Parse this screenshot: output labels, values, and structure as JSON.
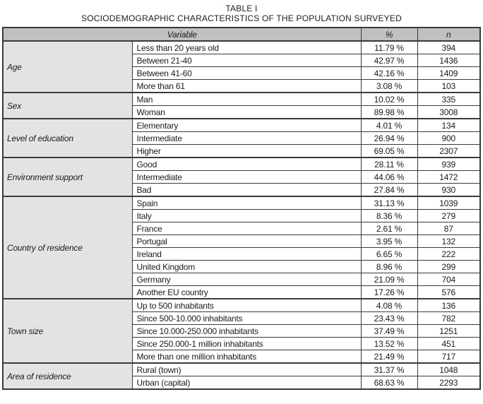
{
  "title": {
    "line1": "TABLE I",
    "line2": "SOCIODEMOGRAPHIC CHARACTERISTICS OF THE POPULATION SURVEYED"
  },
  "table": {
    "headers": {
      "variable": "Variable",
      "percent": "%",
      "n": "n"
    },
    "groups": [
      {
        "variable": "Age",
        "rows": [
          {
            "category": "Less than 20 years old",
            "percent": "11.79 %",
            "n": "394"
          },
          {
            "category": "Between 21-40",
            "percent": "42.97 %",
            "n": "1436"
          },
          {
            "category": "Between 41-60",
            "percent": "42.16 %",
            "n": "1409"
          },
          {
            "category": "More than 61",
            "percent": "3.08 %",
            "n": "103"
          }
        ]
      },
      {
        "variable": "Sex",
        "rows": [
          {
            "category": "Man",
            "percent": "10.02 %",
            "n": "335"
          },
          {
            "category": "Woman",
            "percent": "89.98 %",
            "n": "3008"
          }
        ]
      },
      {
        "variable": "Level of education",
        "rows": [
          {
            "category": "Elementary",
            "percent": "4.01 %",
            "n": "134"
          },
          {
            "category": "Intermediate",
            "percent": "26.94 %",
            "n": "900"
          },
          {
            "category": "Higher",
            "percent": "69.05 %",
            "n": "2307"
          }
        ]
      },
      {
        "variable": "Environment support",
        "rows": [
          {
            "category": "Good",
            "percent": "28.11 %",
            "n": "939"
          },
          {
            "category": "Intermediate",
            "percent": "44.06 %",
            "n": "1472"
          },
          {
            "category": "Bad",
            "percent": "27.84 %",
            "n": "930"
          }
        ]
      },
      {
        "variable": "Country of residence",
        "rows": [
          {
            "category": "Spain",
            "percent": "31.13 %",
            "n": "1039"
          },
          {
            "category": "Italy",
            "percent": "8.36 %",
            "n": "279"
          },
          {
            "category": "France",
            "percent": "2.61 %",
            "n": "87"
          },
          {
            "category": "Portugal",
            "percent": "3.95 %",
            "n": "132"
          },
          {
            "category": "Ireland",
            "percent": "6.65 %",
            "n": "222"
          },
          {
            "category": "United Kingdom",
            "percent": "8.96 %",
            "n": "299"
          },
          {
            "category": "Germany",
            "percent": "21.09 %",
            "n": "704"
          },
          {
            "category": "Another EU country",
            "percent": "17.26 %",
            "n": "576"
          }
        ]
      },
      {
        "variable": "Town size",
        "rows": [
          {
            "category": "Up to 500 inhabitants",
            "percent": "4.08 %",
            "n": "136"
          },
          {
            "category": "Since 500-10.000 inhabitants",
            "percent": "23.43 %",
            "n": "782"
          },
          {
            "category": "Since 10.000-250.000 inhabitants",
            "percent": "37.49 %",
            "n": "1251"
          },
          {
            "category": "Since 250.000-1 million inhabitants",
            "percent": "13.52 %",
            "n": "451"
          },
          {
            "category": "More than one million inhabitants",
            "percent": "21.49 %",
            "n": "717"
          }
        ]
      },
      {
        "variable": "Area of residence",
        "rows": [
          {
            "category": "Rural (town)",
            "percent": "31.37 %",
            "n": "1048"
          },
          {
            "category": "Urban (capital)",
            "percent": "68.63 %",
            "n": "2293"
          }
        ]
      }
    ],
    "colors": {
      "header_bg": "#c0c0c0",
      "group_bg": "#e3e3e3",
      "border": "#3a3a3a"
    }
  }
}
